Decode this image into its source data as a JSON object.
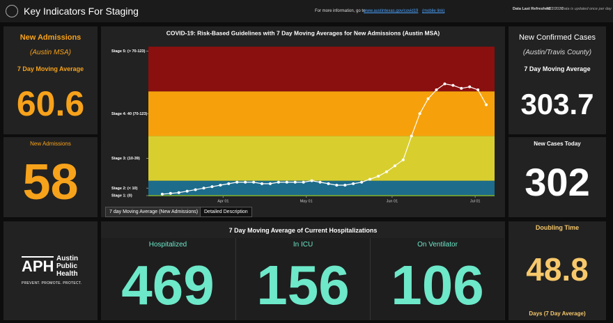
{
  "header": {
    "title": "Key Indicators For Staging",
    "info_text": "For more information, go to",
    "link": "www.austintexas.gov/covid19",
    "mobile": "(mobile link)",
    "refreshed_label": "Data Last Refreshed:",
    "refreshed": "7/22/2020",
    "refreshed_note": "Data is updated once per day"
  },
  "left": {
    "title": "New Admissions",
    "subtitle": "(Austin MSA)",
    "ma_label": "7 Day Moving Average",
    "ma_value": 60.6,
    "today_label": "New Admissions",
    "today_value": 58
  },
  "right": {
    "title": "New Confirmed Cases",
    "subtitle": "(Austin/Travis County)",
    "ma_label": "7 Day Moving Average",
    "ma_value": 303.7,
    "today_label": "New Cases Today",
    "today_value": 302
  },
  "logo": {
    "mark": "APH",
    "lines": [
      "Austin",
      "Public",
      "Health"
    ],
    "tagline": "PREVENT. PROMOTE. PROTECT."
  },
  "tabs": [
    "7 day Moving Average (New Admissions)",
    "Detailed Description"
  ],
  "hospitalizations": {
    "title": "7 Day Moving Average of Current Hospitalizations",
    "items": [
      {
        "label": "Hospitalized",
        "value": 469
      },
      {
        "label": "In ICU",
        "value": 156
      },
      {
        "label": "On Ventilator",
        "value": 106
      }
    ]
  },
  "doubling": {
    "title": "Doubling Time",
    "value": 48.8,
    "note": "Days (7 Day Average)"
  },
  "chart_data": {
    "type": "line",
    "title": "COVID-19: Risk-Based Guidelines with 7 Day Moving Averages for New Admissions (Austin MSA)",
    "color": "#ffffff",
    "x": [
      "03-10",
      "03-13",
      "03-16",
      "03-19",
      "03-22",
      "03-25",
      "03-28",
      "03-31",
      "04-03",
      "04-06",
      "04-09",
      "04-12",
      "04-15",
      "04-18",
      "04-21",
      "04-24",
      "04-27",
      "04-30",
      "05-03",
      "05-06",
      "05-09",
      "05-12",
      "05-15",
      "05-18",
      "05-21",
      "05-24",
      "05-27",
      "05-30",
      "06-02",
      "06-05",
      "06-08",
      "06-11",
      "06-14",
      "06-17",
      "06-20",
      "06-23",
      "06-26",
      "06-29",
      "07-02",
      "07-05"
    ],
    "values": [
      1,
      1.5,
      2,
      3,
      4,
      5,
      6,
      7,
      8,
      9,
      9,
      9,
      8,
      8,
      9,
      9,
      9,
      9,
      10,
      9,
      8,
      7,
      7,
      8,
      9,
      11,
      13,
      16,
      20,
      24,
      40,
      55,
      65,
      71,
      75,
      74,
      72,
      73,
      71,
      61
    ],
    "xlim": [
      "03-05",
      "07-08"
    ],
    "xticks": [
      {
        "value": "04-01",
        "label": "Apr 01"
      },
      {
        "value": "05-01",
        "label": "May 01"
      },
      {
        "value": "06-01",
        "label": "Jun 01"
      },
      {
        "value": "07-01",
        "label": "Jul 01"
      }
    ],
    "ylim": [
      0,
      100
    ],
    "yticks": [
      {
        "value": 0,
        "label": "Stage 1: (0)"
      },
      {
        "value": 5,
        "label": "Stage 2: (< 10)"
      },
      {
        "value": 25,
        "label": "Stage 3: (10-39)"
      },
      {
        "value": 55,
        "label": "Stage 4: 40 (70-123)"
      },
      {
        "value": 97,
        "label": "Stage 5: (> 70-123)"
      }
    ],
    "bands": [
      {
        "from": 0,
        "to": 10,
        "color": "#1d6c8b"
      },
      {
        "from": 10,
        "to": 40,
        "color": "#d8cf2f"
      },
      {
        "from": 40,
        "to": 70,
        "color": "#f6a10c"
      },
      {
        "from": 70,
        "to": 100,
        "color": "#8a0f0f"
      }
    ]
  }
}
